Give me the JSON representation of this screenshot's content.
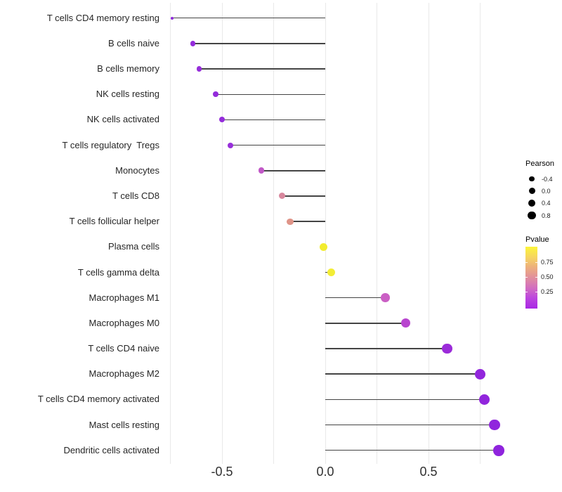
{
  "figure": {
    "background": "#ffffff"
  },
  "chart_data": {
    "type": "lollipop",
    "orientation": "horizontal",
    "title": "",
    "xlabel": "",
    "ylabel": "",
    "x_axis": {
      "range": [
        -0.78,
        0.87
      ],
      "ticks": [
        {
          "value": -0.5,
          "label": "-0.5"
        },
        {
          "value": 0.0,
          "label": "0.0"
        },
        {
          "value": 0.5,
          "label": "0.5"
        }
      ],
      "gridlines": [
        -0.75,
        -0.5,
        -0.25,
        0,
        0.25,
        0.5,
        0.75
      ]
    },
    "grid": "vertical-only",
    "legend_position": "right",
    "stem_color": "#444444",
    "gridline_color": "#e9e9e9",
    "points": [
      {
        "label": "T cells CD4 memory resting",
        "pearson": -0.74,
        "dot_color": "#8f2adb",
        "dot_diameter": 4
      },
      {
        "label": "B cells naive",
        "pearson": -0.64,
        "dot_color": "#942cdb",
        "dot_diameter": 7.3
      },
      {
        "label": "B cells memory",
        "pearson": -0.61,
        "dot_color": "#962eda",
        "dot_diameter": 7.3
      },
      {
        "label": "NK cells resting",
        "pearson": -0.53,
        "dot_color": "#932bdb",
        "dot_diameter": 7.7
      },
      {
        "label": "NK cells activated",
        "pearson": -0.5,
        "dot_color": "#942cdb",
        "dot_diameter": 8
      },
      {
        "label": "T cells regulatory  Tregs",
        "pearson": -0.46,
        "dot_color": "#982fda",
        "dot_diameter": 8
      },
      {
        "label": "Monocytes",
        "pearson": -0.31,
        "dot_color": "#c158c7",
        "dot_diameter": 8.7
      },
      {
        "label": "T cells CD8",
        "pearson": -0.21,
        "dot_color": "#d8879d",
        "dot_diameter": 9
      },
      {
        "label": "T cells follicular helper",
        "pearson": -0.17,
        "dot_color": "#df9488",
        "dot_diameter": 9.3
      },
      {
        "label": "Plasma cells",
        "pearson": -0.01,
        "dot_color": "#f2ec2e",
        "dot_diameter": 11
      },
      {
        "label": "T cells gamma delta",
        "pearson": 0.03,
        "dot_color": "#f3ed35",
        "dot_diameter": 11.3
      },
      {
        "label": "Macrophages M1",
        "pearson": 0.29,
        "dot_color": "#ca5fc4",
        "dot_diameter": 12.7
      },
      {
        "label": "Macrophages M0",
        "pearson": 0.39,
        "dot_color": "#b845cf",
        "dot_diameter": 13.3
      },
      {
        "label": "T cells CD4 naive",
        "pearson": 0.59,
        "dot_color": "#9b2bd9",
        "dot_diameter": 14.7
      },
      {
        "label": "Macrophages M2",
        "pearson": 0.75,
        "dot_color": "#9226dc",
        "dot_diameter": 15
      },
      {
        "label": "T cells CD4 memory activated",
        "pearson": 0.77,
        "dot_color": "#9125dc",
        "dot_diameter": 15.2
      },
      {
        "label": "Mast cells resting",
        "pearson": 0.82,
        "dot_color": "#9025dd",
        "dot_diameter": 15.5
      },
      {
        "label": "Dendritic cells activated",
        "pearson": 0.84,
        "dot_color": "#8f24dd",
        "dot_diameter": 15.7
      }
    ],
    "legends": {
      "size": {
        "title": "Pearson",
        "dot_color": "#000000",
        "items": [
          {
            "label": "-0.4",
            "diameter": 7.3
          },
          {
            "label": "0.0",
            "diameter": 9
          },
          {
            "label": "0.4",
            "diameter": 10.3
          },
          {
            "label": "0.8",
            "diameter": 11.3
          }
        ]
      },
      "color": {
        "title": "Pvalue",
        "tick_labels": [
          "0.75",
          "0.50",
          "0.25"
        ],
        "gradient_top_to_bottom": [
          "#fcf53a",
          "#f6d560",
          "#edaf7c",
          "#e18f9d",
          "#d26cc1",
          "#bc45de",
          "#a928e4"
        ]
      }
    }
  }
}
